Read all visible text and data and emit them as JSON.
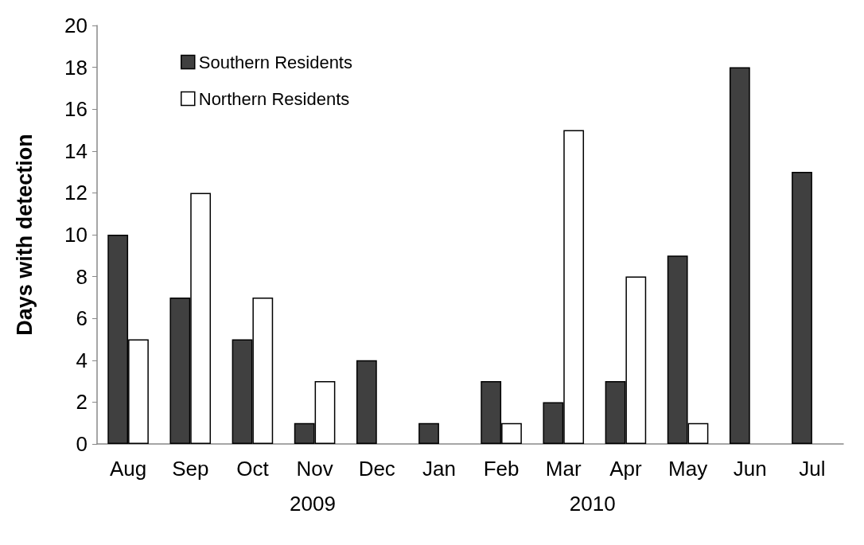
{
  "chart_data": {
    "type": "bar",
    "ylabel": "Days with detection",
    "categories": [
      "Aug",
      "Sep",
      "Oct",
      "Nov",
      "Dec",
      "Jan",
      "Feb",
      "Mar",
      "Apr",
      "May",
      "Jun",
      "Jul"
    ],
    "series": [
      {
        "name": "Southern Residents",
        "color": "#404040",
        "values": [
          10,
          7,
          5,
          1,
          4,
          1,
          3,
          2,
          3,
          9,
          18,
          13
        ]
      },
      {
        "name": "Northern Residents",
        "color": "#ffffff",
        "values": [
          5,
          12,
          7,
          3,
          null,
          null,
          1,
          15,
          8,
          1,
          null,
          null
        ]
      }
    ],
    "ylim": [
      0,
      20
    ],
    "yticks": [
      0,
      2,
      4,
      6,
      8,
      10,
      12,
      14,
      16,
      18,
      20
    ],
    "grid": false,
    "legend": "top left",
    "annotations": [
      "2009",
      "2010"
    ]
  }
}
